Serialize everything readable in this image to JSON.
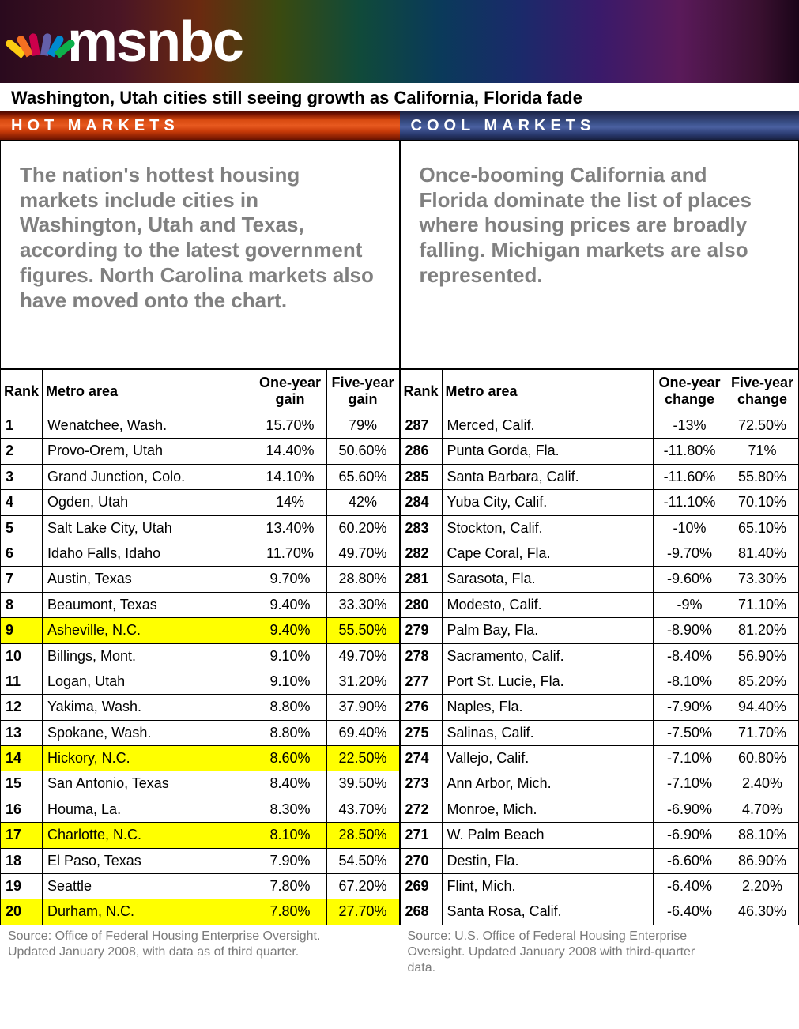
{
  "brand": "msnbc",
  "subheadline": "Washington, Utah cities still seeing growth as California, Florida fade",
  "hot": {
    "heading": "HOT MARKETS",
    "intro": "The nation's hottest housing markets include cities in Washington, Utah and Texas, according to the latest government figures. North Carolina markets also have moved onto the chart.",
    "columns": [
      "Rank",
      "Metro area",
      "One-year gain",
      "Five-year gain"
    ],
    "rows": [
      {
        "rank": "1",
        "metro": "Wenatchee, Wash.",
        "y1": "15.70%",
        "y5": "79%",
        "hl": false
      },
      {
        "rank": "2",
        "metro": "Provo-Orem, Utah",
        "y1": "14.40%",
        "y5": "50.60%",
        "hl": false
      },
      {
        "rank": "3",
        "metro": "Grand Junction, Colo.",
        "y1": "14.10%",
        "y5": "65.60%",
        "hl": false
      },
      {
        "rank": "4",
        "metro": "Ogden, Utah",
        "y1": "14%",
        "y5": "42%",
        "hl": false
      },
      {
        "rank": "5",
        "metro": "Salt Lake City, Utah",
        "y1": "13.40%",
        "y5": "60.20%",
        "hl": false
      },
      {
        "rank": "6",
        "metro": "Idaho Falls, Idaho",
        "y1": "11.70%",
        "y5": "49.70%",
        "hl": false
      },
      {
        "rank": "7",
        "metro": "Austin, Texas",
        "y1": "9.70%",
        "y5": "28.80%",
        "hl": false
      },
      {
        "rank": "8",
        "metro": "Beaumont, Texas",
        "y1": "9.40%",
        "y5": "33.30%",
        "hl": false
      },
      {
        "rank": "9",
        "metro": "Asheville, N.C.",
        "y1": "9.40%",
        "y5": "55.50%",
        "hl": true
      },
      {
        "rank": "10",
        "metro": "Billings, Mont.",
        "y1": "9.10%",
        "y5": "49.70%",
        "hl": false
      },
      {
        "rank": "11",
        "metro": "Logan, Utah",
        "y1": "9.10%",
        "y5": "31.20%",
        "hl": false
      },
      {
        "rank": "12",
        "metro": "Yakima, Wash.",
        "y1": "8.80%",
        "y5": "37.90%",
        "hl": false
      },
      {
        "rank": "13",
        "metro": "Spokane, Wash.",
        "y1": "8.80%",
        "y5": "69.40%",
        "hl": false
      },
      {
        "rank": "14",
        "metro": "Hickory, N.C.",
        "y1": "8.60%",
        "y5": "22.50%",
        "hl": true
      },
      {
        "rank": "15",
        "metro": "San Antonio, Texas",
        "y1": "8.40%",
        "y5": "39.50%",
        "hl": false
      },
      {
        "rank": "16",
        "metro": "Houma, La.",
        "y1": "8.30%",
        "y5": "43.70%",
        "hl": false
      },
      {
        "rank": "17",
        "metro": "Charlotte, N.C.",
        "y1": "8.10%",
        "y5": "28.50%",
        "hl": true
      },
      {
        "rank": "18",
        "metro": "El Paso, Texas",
        "y1": "7.90%",
        "y5": "54.50%",
        "hl": false
      },
      {
        "rank": "19",
        "metro": "Seattle",
        "y1": "7.80%",
        "y5": "67.20%",
        "hl": false
      },
      {
        "rank": "20",
        "metro": "Durham, N.C.",
        "y1": "7.80%",
        "y5": "27.70%",
        "hl": true
      }
    ],
    "footnote": "Source: Office of Federal Housing Enterprise Oversight. Updated January 2008, with data as of third quarter."
  },
  "cool": {
    "heading": "COOL MARKETS",
    "intro": "Once-booming California and Florida dominate the list of places where housing prices are broadly falling. Michigan markets are also represented.",
    "columns": [
      "Rank",
      "Metro area",
      "One-year change",
      "Five-year change"
    ],
    "rows": [
      {
        "rank": "287",
        "metro": "Merced, Calif.",
        "y1": "-13%",
        "y5": "72.50%"
      },
      {
        "rank": "286",
        "metro": "Punta Gorda, Fla.",
        "y1": "-11.80%",
        "y5": "71%"
      },
      {
        "rank": "285",
        "metro": "Santa Barbara, Calif.",
        "y1": "-11.60%",
        "y5": "55.80%"
      },
      {
        "rank": "284",
        "metro": "Yuba City, Calif.",
        "y1": "-11.10%",
        "y5": "70.10%"
      },
      {
        "rank": "283",
        "metro": "Stockton, Calif.",
        "y1": "-10%",
        "y5": "65.10%"
      },
      {
        "rank": "282",
        "metro": "Cape Coral, Fla.",
        "y1": "-9.70%",
        "y5": "81.40%"
      },
      {
        "rank": "281",
        "metro": "Sarasota, Fla.",
        "y1": "-9.60%",
        "y5": "73.30%"
      },
      {
        "rank": "280",
        "metro": "Modesto, Calif.",
        "y1": "-9%",
        "y5": "71.10%"
      },
      {
        "rank": "279",
        "metro": "Palm Bay, Fla.",
        "y1": "-8.90%",
        "y5": "81.20%"
      },
      {
        "rank": "278",
        "metro": "Sacramento, Calif.",
        "y1": "-8.40%",
        "y5": "56.90%"
      },
      {
        "rank": "277",
        "metro": "Port St. Lucie, Fla.",
        "y1": "-8.10%",
        "y5": "85.20%"
      },
      {
        "rank": "276",
        "metro": "Naples, Fla.",
        "y1": "-7.90%",
        "y5": "94.40%"
      },
      {
        "rank": "275",
        "metro": "Salinas, Calif.",
        "y1": "-7.50%",
        "y5": "71.70%"
      },
      {
        "rank": "274",
        "metro": "Vallejo, Calif.",
        "y1": "-7.10%",
        "y5": "60.80%"
      },
      {
        "rank": "273",
        "metro": "Ann Arbor, Mich.",
        "y1": "-7.10%",
        "y5": "2.40%"
      },
      {
        "rank": "272",
        "metro": "Monroe, Mich.",
        "y1": "-6.90%",
        "y5": "4.70%"
      },
      {
        "rank": "271",
        "metro": "W. Palm Beach",
        "y1": "-6.90%",
        "y5": "88.10%"
      },
      {
        "rank": "270",
        "metro": "Destin, Fla.",
        "y1": "-6.60%",
        "y5": "86.90%"
      },
      {
        "rank": "269",
        "metro": "Flint, Mich.",
        "y1": "-6.40%",
        "y5": "2.20%"
      },
      {
        "rank": "268",
        "metro": "Santa Rosa, Calif.",
        "y1": "-6.40%",
        "y5": "46.30%"
      }
    ],
    "footnote": "Source: U.S. Office of Federal Housing Enterprise Oversight. Updated January 2008 with third-quarter data."
  },
  "highlight_color": "#ffff00"
}
